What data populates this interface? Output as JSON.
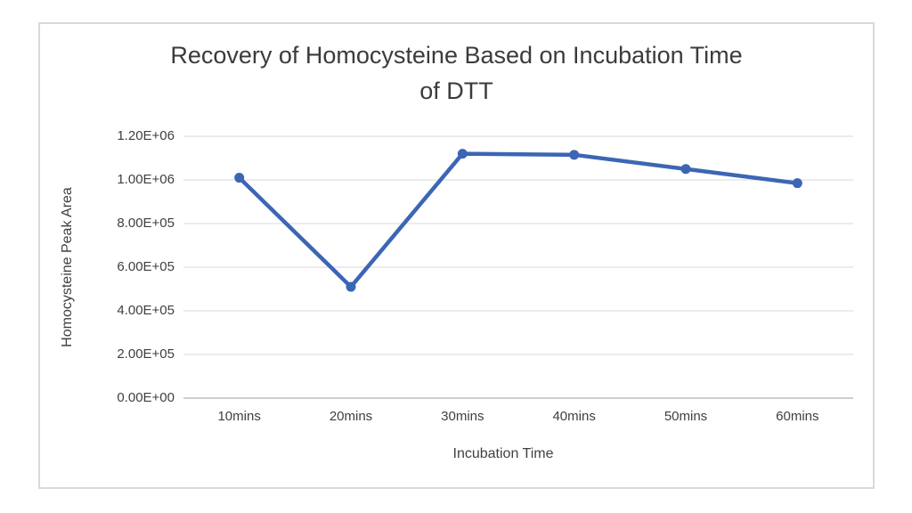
{
  "chart_data": {
    "type": "line",
    "title": "Recovery of Homocysteine Based on Incubation Time of DTT",
    "title_lines": [
      "Recovery of Homocysteine Based on Incubation Time",
      "of DTT"
    ],
    "xlabel": "Incubation Time",
    "ylabel": "Homocysteine Peak Area",
    "categories": [
      "10mins",
      "20mins",
      "30mins",
      "40mins",
      "50mins",
      "60mins"
    ],
    "values": [
      1010000,
      510000,
      1120000,
      1115000,
      1050000,
      985000
    ],
    "ylim": [
      0,
      1200000
    ],
    "y_tick_step": 200000,
    "y_tick_labels": [
      "0.00E+00",
      "2.00E+05",
      "4.00E+05",
      "6.00E+05",
      "8.00E+05",
      "1.00E+06",
      "1.20E+06"
    ],
    "grid": true,
    "legend": "none",
    "marker": "circle",
    "colors": {
      "line": "#3c66b4",
      "marker": "#3c66b4",
      "gridline": "#d9d9d9",
      "axis_line": "#bfbfbf",
      "text": "#3f3f3f",
      "frame_border": "#d9d9d9",
      "background": "#ffffff"
    }
  }
}
